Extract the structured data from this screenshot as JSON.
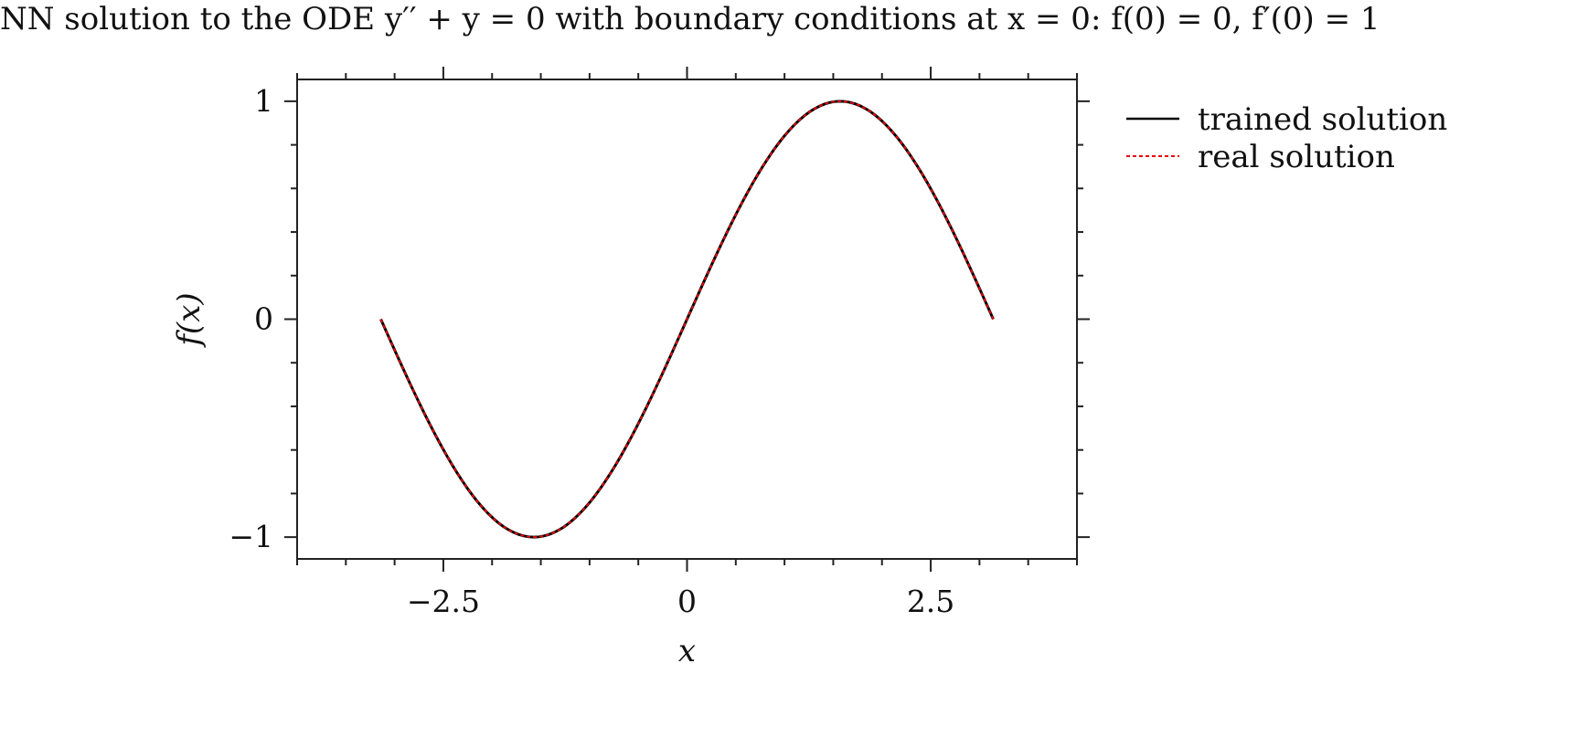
{
  "chart_data": {
    "type": "line",
    "title": "NN solution to the ODE y′′ + y = 0 with boundary conditions at x = 0: f(0) = 0, f′(0) = 1",
    "xlabel": "x",
    "ylabel": "f(x)",
    "xlim": [
      -4.0,
      4.0
    ],
    "ylim": [
      -1.1,
      1.1
    ],
    "x_ticks": [
      -2.5,
      0,
      2.5
    ],
    "x_tick_labels": [
      "−2.5",
      "0",
      "2.5"
    ],
    "y_ticks": [
      -1,
      0,
      1
    ],
    "y_tick_labels": [
      "−1",
      "0",
      "1"
    ],
    "x_minor_step": 0.5,
    "y_minor_step": 0.2,
    "grid": false,
    "legend_position": "outside-right-top",
    "x_range": [
      -3.1416,
      3.1416
    ],
    "sample_count": 121,
    "series": [
      {
        "name": "trained solution",
        "color": "#000000",
        "style": "solid",
        "function": "sin(x)"
      },
      {
        "name": "real solution",
        "color": "#e8000b",
        "style": "dotted",
        "function": "sin(x)"
      }
    ]
  }
}
